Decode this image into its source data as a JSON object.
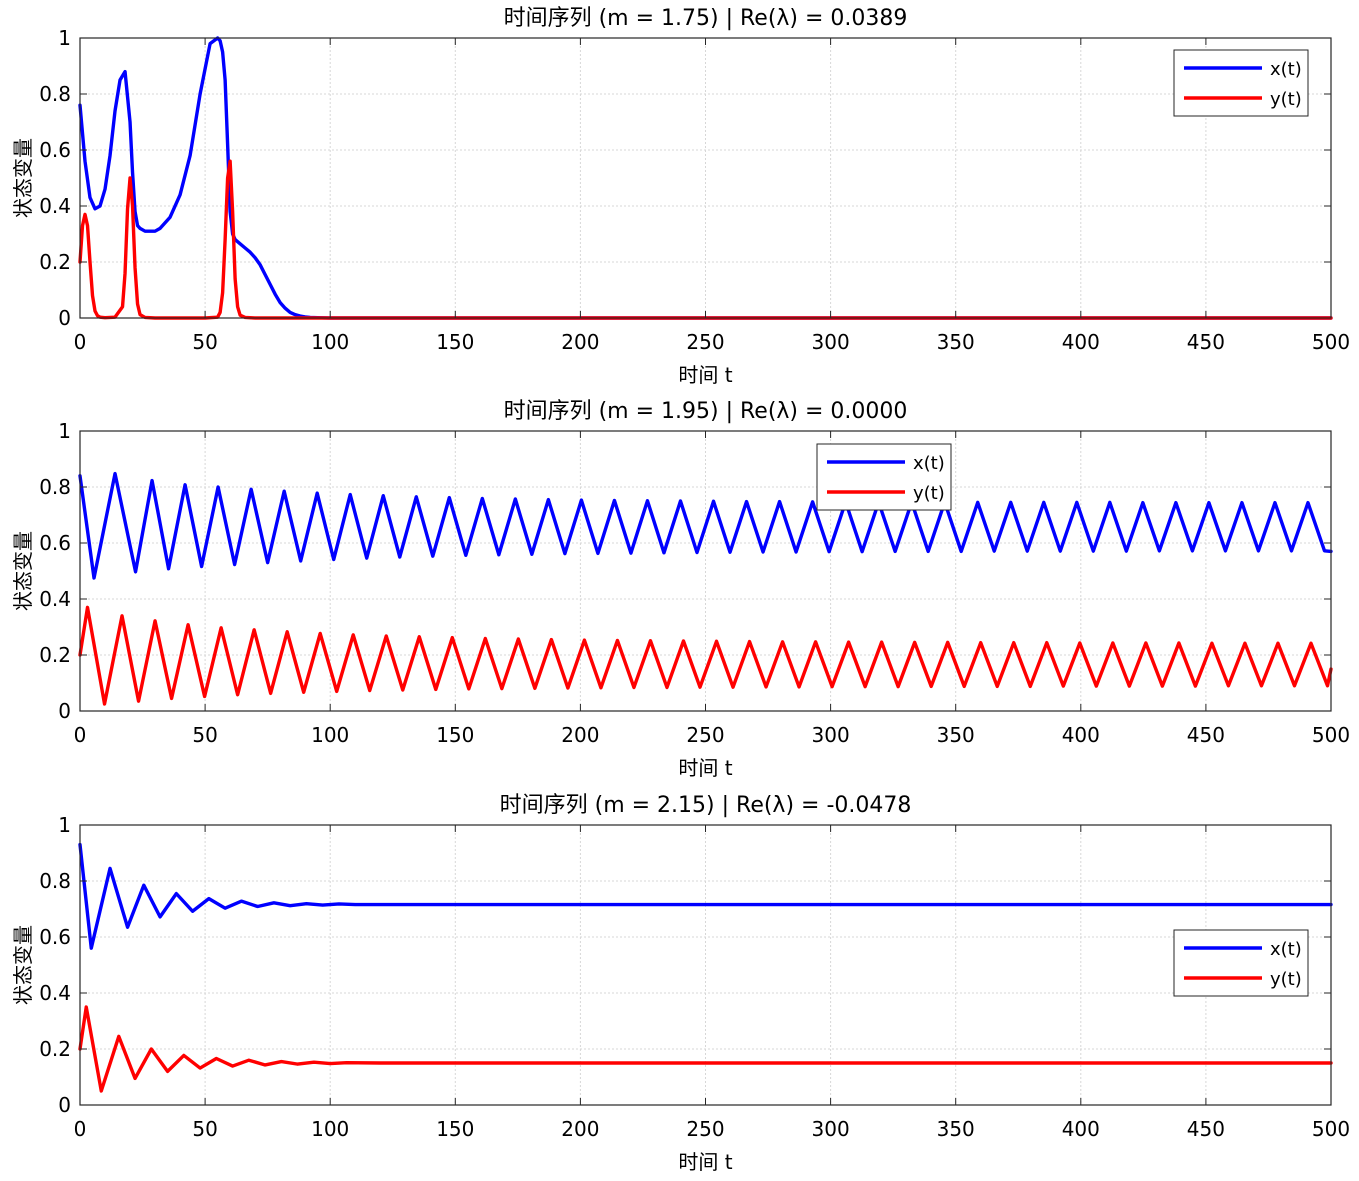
{
  "chart_data": [
    {
      "type": "line",
      "title": "时间序列 (m = 1.75) | Re(λ) = 0.0389",
      "xlabel": "时间 t",
      "ylabel": "状态变量",
      "xlim": [
        0,
        500
      ],
      "ylim": [
        0,
        1
      ],
      "xticks": [
        "0",
        "50",
        "100",
        "150",
        "200",
        "250",
        "300",
        "350",
        "400",
        "450",
        "500"
      ],
      "yticks": [
        "0",
        "0.2",
        "0.4",
        "0.6",
        "0.8",
        "1"
      ],
      "grid": true,
      "legend_position": "top-right",
      "series": [
        {
          "name": "x(t)",
          "color": "#0000ff",
          "x": [
            0,
            2,
            4,
            6,
            8,
            10,
            12,
            14,
            16,
            18,
            20,
            21,
            22,
            23,
            24,
            26,
            28,
            30,
            32,
            36,
            40,
            44,
            48,
            52,
            55,
            56,
            57,
            58,
            59,
            60,
            61,
            62,
            64,
            66,
            68,
            70,
            72,
            74,
            76,
            78,
            80,
            82,
            84,
            86,
            88,
            90,
            92,
            95,
            100,
            110,
            120,
            200,
            300,
            400,
            500
          ],
          "y": [
            0.76,
            0.56,
            0.43,
            0.39,
            0.4,
            0.46,
            0.58,
            0.74,
            0.85,
            0.88,
            0.7,
            0.52,
            0.38,
            0.33,
            0.32,
            0.31,
            0.31,
            0.31,
            0.32,
            0.36,
            0.44,
            0.58,
            0.8,
            0.98,
            1.0,
            0.99,
            0.95,
            0.85,
            0.62,
            0.38,
            0.3,
            0.28,
            0.265,
            0.25,
            0.235,
            0.215,
            0.19,
            0.155,
            0.12,
            0.085,
            0.055,
            0.035,
            0.02,
            0.012,
            0.007,
            0.004,
            0.002,
            0.001,
            0.0,
            0.0,
            0.0,
            0.0,
            0.0,
            0.0,
            0.0
          ]
        },
        {
          "name": "y(t)",
          "color": "#ff0000",
          "x": [
            0,
            1,
            2,
            3,
            4,
            5,
            6,
            7,
            8,
            10,
            14,
            17,
            18,
            19,
            20,
            21,
            22,
            23,
            24,
            26,
            30,
            40,
            50,
            55,
            56,
            57,
            58,
            59,
            60,
            61,
            62,
            63,
            64,
            66,
            70,
            80,
            100,
            200,
            300,
            400,
            500
          ],
          "y": [
            0.2,
            0.33,
            0.37,
            0.33,
            0.2,
            0.08,
            0.025,
            0.008,
            0.003,
            0.001,
            0.003,
            0.04,
            0.16,
            0.39,
            0.5,
            0.4,
            0.18,
            0.05,
            0.012,
            0.002,
            0.0,
            0.0,
            0.0,
            0.003,
            0.02,
            0.09,
            0.28,
            0.5,
            0.56,
            0.38,
            0.14,
            0.04,
            0.01,
            0.002,
            0.0,
            0.0,
            0.0,
            0.0,
            0.0,
            0.0,
            0.0
          ]
        }
      ]
    },
    {
      "type": "line",
      "title": "时间序列 (m = 1.95) | Re(λ) = 0.0000",
      "xlabel": "时间 t",
      "ylabel": "状态变量",
      "xlim": [
        0,
        500
      ],
      "ylim": [
        0,
        1
      ],
      "xticks": [
        "0",
        "50",
        "100",
        "150",
        "200",
        "250",
        "300",
        "350",
        "400",
        "450",
        "500"
      ],
      "yticks": [
        "0",
        "0.2",
        "0.4",
        "0.6",
        "0.8",
        "1"
      ],
      "grid": true,
      "legend_position": "top-center",
      "series": [
        {
          "name": "x(t)",
          "color": "#0000ff",
          "x": [
            0,
            5.6,
            14.0,
            22.2,
            28.8,
            35.4,
            42.0,
            48.6,
            55.2,
            61.8,
            68.4,
            75.0,
            81.6,
            88.2,
            94.8,
            101.4,
            108.0,
            114.6,
            121.2,
            127.8,
            134.4,
            141.0,
            147.6,
            154.2,
            160.8,
            167.4,
            174.0,
            180.6,
            187.2,
            193.8,
            200.4,
            207.0,
            213.6,
            220.2,
            226.8,
            233.4,
            240.0,
            246.6,
            253.2,
            259.8,
            266.4,
            273.0,
            279.6,
            286.2,
            292.8,
            299.4,
            306.0,
            312.6,
            319.2,
            325.8,
            332.4,
            339.0,
            345.6,
            352.2,
            358.8,
            365.4,
            372.0,
            378.6,
            385.2,
            391.8,
            398.4,
            405.0,
            411.6,
            418.2,
            424.8,
            431.4,
            438.0,
            444.6,
            451.2,
            457.8,
            464.4,
            471.0,
            477.6,
            484.2,
            490.8,
            497.4,
            500
          ],
          "y": [
            0.84,
            0.475,
            0.848,
            0.497,
            0.823,
            0.508,
            0.808,
            0.516,
            0.8,
            0.523,
            0.792,
            0.53,
            0.785,
            0.536,
            0.778,
            0.541,
            0.773,
            0.546,
            0.769,
            0.55,
            0.765,
            0.553,
            0.762,
            0.556,
            0.759,
            0.558,
            0.757,
            0.56,
            0.755,
            0.562,
            0.753,
            0.563,
            0.752,
            0.564,
            0.751,
            0.565,
            0.75,
            0.566,
            0.749,
            0.567,
            0.748,
            0.568,
            0.748,
            0.568,
            0.747,
            0.569,
            0.747,
            0.569,
            0.746,
            0.57,
            0.746,
            0.57,
            0.746,
            0.57,
            0.745,
            0.571,
            0.745,
            0.571,
            0.745,
            0.571,
            0.745,
            0.571,
            0.745,
            0.571,
            0.744,
            0.572,
            0.744,
            0.572,
            0.744,
            0.572,
            0.744,
            0.572,
            0.744,
            0.572,
            0.744,
            0.572,
            0.57
          ]
        },
        {
          "name": "y(t)",
          "color": "#ff0000",
          "x": [
            0,
            3.0,
            9.8,
            16.8,
            23.4,
            30.0,
            36.6,
            43.2,
            49.8,
            56.4,
            63.0,
            69.6,
            76.2,
            82.8,
            89.4,
            96.0,
            102.6,
            109.2,
            115.8,
            122.4,
            129.0,
            135.6,
            142.2,
            148.8,
            155.4,
            162.0,
            168.6,
            175.2,
            181.8,
            188.4,
            195.0,
            201.6,
            208.2,
            214.8,
            221.4,
            228.0,
            234.6,
            241.2,
            247.8,
            254.4,
            261.0,
            267.6,
            274.2,
            280.8,
            287.4,
            294.0,
            300.6,
            307.2,
            313.8,
            320.4,
            327.0,
            333.6,
            340.2,
            346.8,
            353.4,
            360.0,
            366.6,
            373.2,
            379.8,
            386.4,
            393.0,
            399.6,
            406.2,
            412.8,
            419.4,
            426.0,
            432.6,
            439.2,
            445.8,
            452.4,
            459.0,
            465.6,
            472.2,
            478.8,
            485.4,
            492.0,
            498.6,
            500
          ],
          "y": [
            0.2,
            0.37,
            0.025,
            0.34,
            0.035,
            0.322,
            0.045,
            0.308,
            0.052,
            0.297,
            0.058,
            0.29,
            0.063,
            0.283,
            0.067,
            0.277,
            0.07,
            0.272,
            0.073,
            0.268,
            0.075,
            0.265,
            0.077,
            0.262,
            0.079,
            0.259,
            0.08,
            0.257,
            0.081,
            0.255,
            0.082,
            0.253,
            0.083,
            0.252,
            0.084,
            0.251,
            0.084,
            0.25,
            0.085,
            0.249,
            0.085,
            0.248,
            0.086,
            0.247,
            0.086,
            0.247,
            0.087,
            0.246,
            0.087,
            0.246,
            0.087,
            0.245,
            0.088,
            0.245,
            0.088,
            0.244,
            0.088,
            0.244,
            0.088,
            0.244,
            0.089,
            0.243,
            0.089,
            0.243,
            0.089,
            0.243,
            0.089,
            0.243,
            0.089,
            0.242,
            0.09,
            0.242,
            0.09,
            0.242,
            0.09,
            0.242,
            0.09,
            0.15
          ]
        }
      ]
    },
    {
      "type": "line",
      "title": "时间序列 (m = 2.15) | Re(λ) = -0.0478",
      "xlabel": "时间 t",
      "ylabel": "状态变量",
      "xlim": [
        0,
        500
      ],
      "ylim": [
        0,
        1
      ],
      "xticks": [
        "0",
        "50",
        "100",
        "150",
        "200",
        "250",
        "300",
        "350",
        "400",
        "450",
        "500"
      ],
      "yticks": [
        "0",
        "0.2",
        "0.4",
        "0.6",
        "0.8",
        "1"
      ],
      "grid": true,
      "legend_position": "right",
      "series": [
        {
          "name": "x(t)",
          "color": "#0000ff",
          "x": [
            0,
            4.5,
            12.0,
            19.0,
            25.5,
            32.0,
            38.5,
            45.0,
            51.5,
            58.0,
            64.5,
            71.0,
            77.5,
            84.0,
            90.5,
            97.0,
            103.5,
            110,
            120,
            200,
            300,
            400,
            500
          ],
          "y": [
            0.93,
            0.56,
            0.845,
            0.635,
            0.785,
            0.672,
            0.755,
            0.692,
            0.737,
            0.703,
            0.728,
            0.709,
            0.722,
            0.712,
            0.719,
            0.714,
            0.718,
            0.716,
            0.716,
            0.716,
            0.716,
            0.716,
            0.716
          ]
        },
        {
          "name": "y(t)",
          "color": "#ff0000",
          "x": [
            0,
            2.5,
            8.5,
            15.5,
            22.0,
            28.5,
            35.0,
            41.5,
            48.0,
            54.5,
            61.0,
            67.5,
            74.0,
            80.5,
            87.0,
            93.5,
            100.0,
            106.5,
            120,
            200,
            300,
            400,
            500
          ],
          "y": [
            0.2,
            0.35,
            0.05,
            0.245,
            0.095,
            0.2,
            0.12,
            0.177,
            0.132,
            0.166,
            0.139,
            0.16,
            0.143,
            0.155,
            0.146,
            0.153,
            0.148,
            0.151,
            0.15,
            0.15,
            0.15,
            0.15,
            0.15
          ]
        }
      ]
    }
  ]
}
